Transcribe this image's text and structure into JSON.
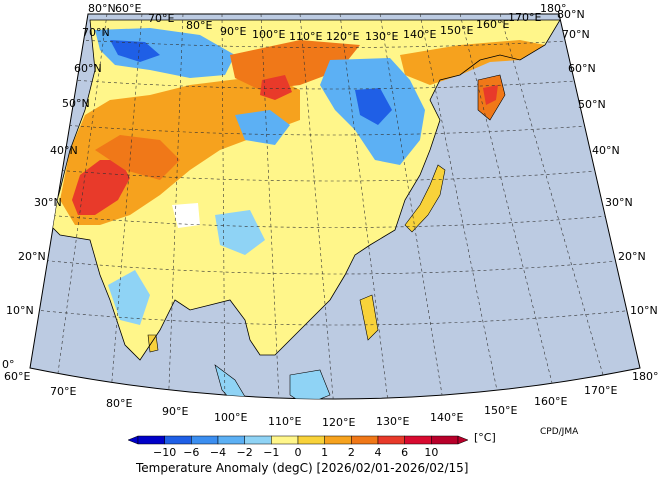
{
  "map": {
    "lat_labels_left": [
      "80°N",
      "70°N",
      "60°N",
      "50°N",
      "40°N",
      "30°N",
      "20°N",
      "10°N",
      "0°"
    ],
    "lat_labels_right": [
      "80°N",
      "70°N",
      "60°N",
      "50°N",
      "40°N",
      "30°N",
      "20°N",
      "10°N",
      "0°"
    ],
    "lon_labels_top": [
      "60°E",
      "70°E",
      "80°E",
      "90°E",
      "100°E",
      "110°E",
      "120°E",
      "130°E",
      "140°E",
      "150°E",
      "160°E",
      "170°E",
      "180°"
    ],
    "lon_labels_bottom": [
      "60°E",
      "70°E",
      "80°E",
      "90°E",
      "100°E",
      "110°E",
      "120°E",
      "130°E",
      "140°E",
      "150°E",
      "160°E",
      "170°E",
      "180°"
    ],
    "ocean_color": "#bccbe2",
    "no_data_color": "#ffffff",
    "credit": "CPD/JMA"
  },
  "colorbar": {
    "unit": "[°C]",
    "levels": [
      "−10",
      "−6",
      "−4",
      "−2",
      "−1",
      "0",
      "1",
      "2",
      "4",
      "6",
      "10"
    ],
    "colors": [
      "#0000c8",
      "#1f5fe6",
      "#3b8ef0",
      "#5cb0f4",
      "#8fd3f5",
      "#fff68a",
      "#f8d23a",
      "#f6a21e",
      "#f07818",
      "#e83a2a",
      "#d80a30",
      "#b8002a"
    ],
    "caption": "Temperature Anomaly (degC) [2026/02/01-2026/02/15]"
  },
  "regions": [
    {
      "name": "siberia-west-cold",
      "color": "#3b8ef0"
    },
    {
      "name": "central-asia-warm",
      "color": "#f07818"
    },
    {
      "name": "iran-hot",
      "color": "#e83a2a"
    },
    {
      "name": "china-warm",
      "color": "#f8d23a"
    },
    {
      "name": "mongolia-cold",
      "color": "#5cb0f4"
    },
    {
      "name": "kamchatka-hot",
      "color": "#e83a2a"
    }
  ]
}
